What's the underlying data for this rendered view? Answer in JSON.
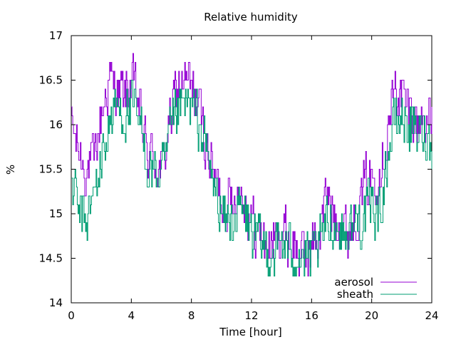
{
  "chart_data": {
    "type": "line",
    "title": "Relative humidity",
    "xlabel": "Time [hour]",
    "ylabel": "%",
    "xlim": [
      0,
      24
    ],
    "ylim": [
      14,
      17
    ],
    "xticks": [
      "0",
      "4",
      "8",
      "12",
      "16",
      "20",
      "24"
    ],
    "yticks": [
      "14",
      "14.5",
      "15",
      "15.5",
      "16",
      "16.5",
      "17"
    ],
    "grid": false,
    "legend_position": "bottom-right",
    "series": [
      {
        "name": "aerosol",
        "color": "#9400d3",
        "x": [
          0,
          0.5,
          1,
          1.5,
          2,
          2.5,
          3,
          3.5,
          4,
          4.5,
          5,
          5.5,
          6,
          6.5,
          7,
          7.5,
          8,
          8.5,
          9,
          9.5,
          10,
          10.5,
          11,
          11.5,
          12,
          12.5,
          13,
          13.5,
          14,
          14.5,
          15,
          15.5,
          16,
          16.5,
          17,
          17.5,
          18,
          18.5,
          19,
          19.5,
          20,
          20.5,
          21,
          21.5,
          22,
          22.5,
          23,
          23.5,
          24
        ],
        "values": [
          16.0,
          15.7,
          15.5,
          15.6,
          16.1,
          16.5,
          16.4,
          16.3,
          16.5,
          16.2,
          15.7,
          15.6,
          15.5,
          16.0,
          16.4,
          16.5,
          16.4,
          16.2,
          15.8,
          15.4,
          15.2,
          15.1,
          15.3,
          15.2,
          14.9,
          14.8,
          14.6,
          14.7,
          14.8,
          14.7,
          14.6,
          14.5,
          14.6,
          14.8,
          15.2,
          15.0,
          14.9,
          14.8,
          15.0,
          15.3,
          15.4,
          15.5,
          15.9,
          16.4,
          16.3,
          16.2,
          16.0,
          16.1,
          16.0
        ]
      },
      {
        "name": "sheath",
        "color": "#009e73",
        "x": [
          0,
          0.5,
          1,
          1.5,
          2,
          2.5,
          3,
          3.5,
          4,
          4.5,
          5,
          5.5,
          6,
          6.5,
          7,
          7.5,
          8,
          8.5,
          9,
          9.5,
          10,
          10.5,
          11,
          11.5,
          12,
          12.5,
          13,
          13.5,
          14,
          14.5,
          15,
          15.5,
          16,
          16.5,
          17,
          17.5,
          18,
          18.5,
          19,
          19.5,
          20,
          20.5,
          21,
          21.5,
          22,
          22.5,
          23,
          23.5,
          24
        ],
        "values": [
          15.4,
          15.0,
          14.9,
          15.2,
          15.6,
          16.0,
          16.2,
          16.1,
          16.2,
          16.0,
          15.6,
          15.5,
          15.4,
          15.8,
          16.1,
          16.2,
          16.2,
          16.0,
          15.7,
          15.3,
          15.0,
          14.9,
          15.0,
          15.0,
          14.8,
          14.7,
          14.6,
          14.6,
          14.7,
          14.6,
          14.6,
          14.5,
          14.5,
          14.6,
          14.9,
          14.9,
          14.8,
          14.8,
          14.9,
          15.0,
          15.1,
          15.0,
          15.6,
          16.0,
          16.1,
          16.0,
          15.9,
          15.9,
          15.8
        ]
      }
    ]
  }
}
